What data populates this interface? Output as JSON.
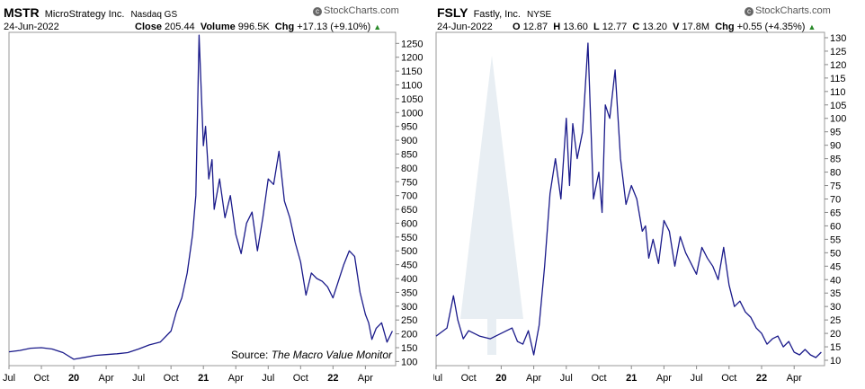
{
  "chart_data": [
    {
      "type": "line",
      "symbol": "MSTR",
      "name": "MicroStrategy Inc.",
      "exchange": "Nasdaq GS",
      "date": "24-Jun-2022",
      "watermark": "StockCharts.com",
      "stats": [
        {
          "label": "Close",
          "value": "205.44"
        },
        {
          "label": "Volume",
          "value": "996.5K"
        },
        {
          "label": "Chg",
          "value": "+17.13 (+9.10%)"
        }
      ],
      "annotation_prefix": "Source: ",
      "annotation_italic": "The Macro Value Monitor",
      "ylim": [
        85,
        1290
      ],
      "yticks": [
        100,
        150,
        200,
        250,
        300,
        350,
        400,
        450,
        500,
        550,
        600,
        650,
        700,
        750,
        800,
        850,
        900,
        950,
        1000,
        1050,
        1100,
        1150,
        1200,
        1250
      ],
      "xticks": [
        "Jul",
        "Oct",
        "20",
        "Apr",
        "Jul",
        "Oct",
        "21",
        "Apr",
        "Jul",
        "Oct",
        "22",
        "Apr"
      ],
      "xtick_positions": [
        0,
        3,
        6,
        9,
        12,
        15,
        18,
        21,
        24,
        27,
        30,
        33
      ],
      "xlim": [
        0,
        35.8
      ],
      "x": [
        0,
        1,
        2,
        3,
        4,
        5,
        6,
        7,
        8,
        9,
        10,
        11,
        12,
        13,
        14,
        15,
        15.5,
        16,
        16.5,
        17,
        17.3,
        17.6,
        18,
        18.2,
        18.5,
        18.8,
        19,
        19.5,
        20,
        20.5,
        21,
        21.5,
        22,
        22.5,
        23,
        23.5,
        24,
        24.5,
        25,
        25.5,
        26,
        26.5,
        27,
        27.5,
        28,
        28.5,
        29,
        29.5,
        30,
        30.5,
        31,
        31.5,
        32,
        32.5,
        33,
        33.3,
        33.6,
        34,
        34.5,
        35,
        35.5
      ],
      "values": [
        135,
        140,
        148,
        150,
        145,
        132,
        108,
        115,
        122,
        125,
        128,
        132,
        145,
        160,
        170,
        210,
        280,
        330,
        420,
        560,
        700,
        1280,
        880,
        950,
        760,
        830,
        650,
        760,
        620,
        700,
        560,
        490,
        600,
        640,
        500,
        620,
        760,
        740,
        860,
        680,
        620,
        530,
        460,
        340,
        420,
        400,
        390,
        370,
        330,
        390,
        450,
        500,
        480,
        350,
        270,
        240,
        180,
        220,
        240,
        170,
        210
      ]
    },
    {
      "type": "line",
      "symbol": "FSLY",
      "name": "Fastly, Inc.",
      "exchange": "NYSE",
      "date": "24-Jun-2022",
      "watermark": "StockCharts.com",
      "stats": [
        {
          "label": "O",
          "value": "12.87"
        },
        {
          "label": "H",
          "value": "13.60"
        },
        {
          "label": "L",
          "value": "12.77"
        },
        {
          "label": "C",
          "value": "13.20"
        },
        {
          "label": "V",
          "value": "17.8M"
        },
        {
          "label": "Chg",
          "value": "+0.55 (+4.35%)"
        }
      ],
      "ylim": [
        8,
        132
      ],
      "yticks": [
        10,
        15,
        20,
        25,
        30,
        35,
        40,
        45,
        50,
        55,
        60,
        65,
        70,
        75,
        80,
        85,
        90,
        95,
        100,
        105,
        110,
        115,
        120,
        125,
        130
      ],
      "xticks": [
        "Jul",
        "Oct",
        "20",
        "Apr",
        "Jul",
        "Oct",
        "21",
        "Apr",
        "Jul",
        "Oct",
        "22",
        "Apr"
      ],
      "xtick_positions": [
        0,
        3,
        6,
        9,
        12,
        15,
        18,
        21,
        24,
        27,
        30,
        33
      ],
      "xlim": [
        0,
        35.8
      ],
      "x": [
        0,
        1,
        1.6,
        2,
        2.5,
        3,
        4,
        5,
        6,
        7,
        7.5,
        8,
        8.5,
        9,
        9.5,
        10,
        10.5,
        11,
        11.5,
        12,
        12.3,
        12.6,
        13,
        13.5,
        14,
        14.5,
        15,
        15.3,
        15.6,
        16,
        16.5,
        17,
        17.5,
        18,
        18.5,
        19,
        19.3,
        19.6,
        20,
        20.5,
        21,
        21.5,
        22,
        22.5,
        23,
        23.5,
        24,
        24.5,
        25,
        25.5,
        26,
        26.5,
        27,
        27.5,
        28,
        28.5,
        29,
        29.5,
        30,
        30.5,
        31,
        31.5,
        32,
        32.5,
        33,
        33.5,
        34,
        34.5,
        35,
        35.5
      ],
      "values": [
        19,
        22,
        34,
        25,
        18,
        21,
        19,
        18,
        20,
        22,
        17,
        16,
        21,
        12,
        23,
        45,
        72,
        85,
        70,
        100,
        75,
        98,
        85,
        95,
        128,
        70,
        80,
        65,
        105,
        100,
        118,
        85,
        68,
        75,
        70,
        58,
        60,
        48,
        55,
        46,
        62,
        58,
        45,
        56,
        50,
        46,
        42,
        52,
        48,
        45,
        40,
        52,
        38,
        30,
        32,
        28,
        26,
        22,
        20,
        16,
        18,
        19,
        15,
        17,
        13,
        12,
        14,
        12,
        11,
        13
      ]
    }
  ]
}
